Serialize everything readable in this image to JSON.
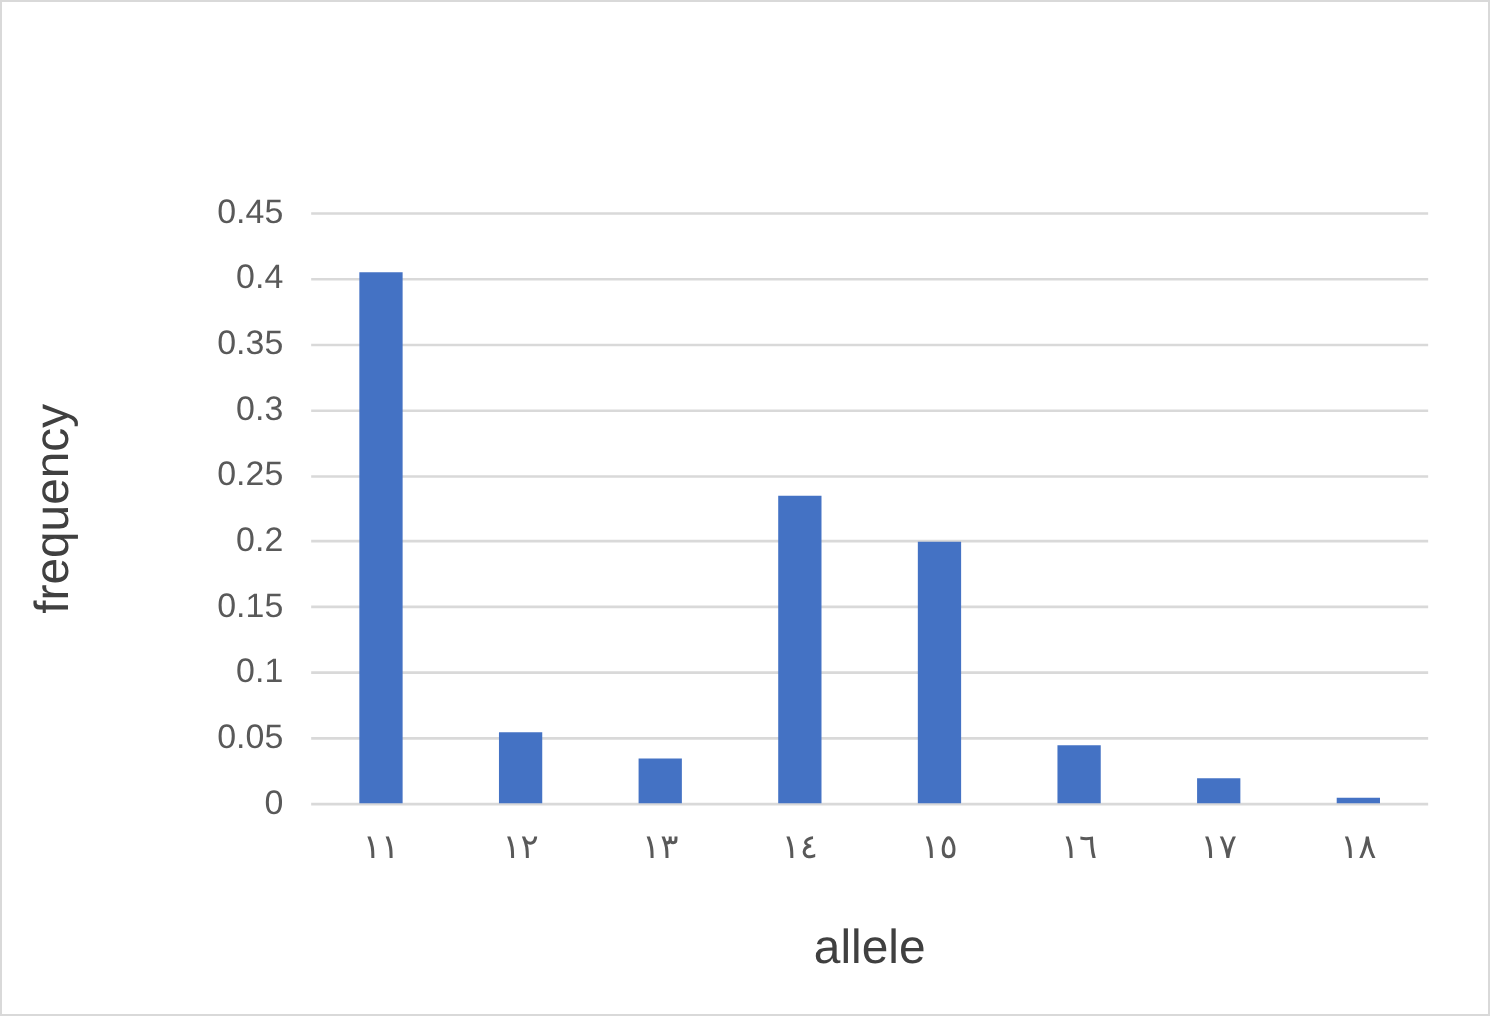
{
  "chart_data": {
    "type": "bar",
    "xlabel": "allele",
    "ylabel": "frequency",
    "categories": [
      "١١",
      "١٢",
      "١٣",
      "١٤",
      "١٥",
      "١٦",
      "١٧",
      "١٨"
    ],
    "values": [
      0.405,
      0.055,
      0.035,
      0.235,
      0.2,
      0.045,
      0.02,
      0.005
    ],
    "color": "#4472c4",
    "ylim": [
      0,
      0.45
    ],
    "yticks": [
      0,
      0.05,
      0.1,
      0.15,
      0.2,
      0.25,
      0.3,
      0.35,
      0.4,
      0.45
    ],
    "grid": "y",
    "legend": false
  }
}
